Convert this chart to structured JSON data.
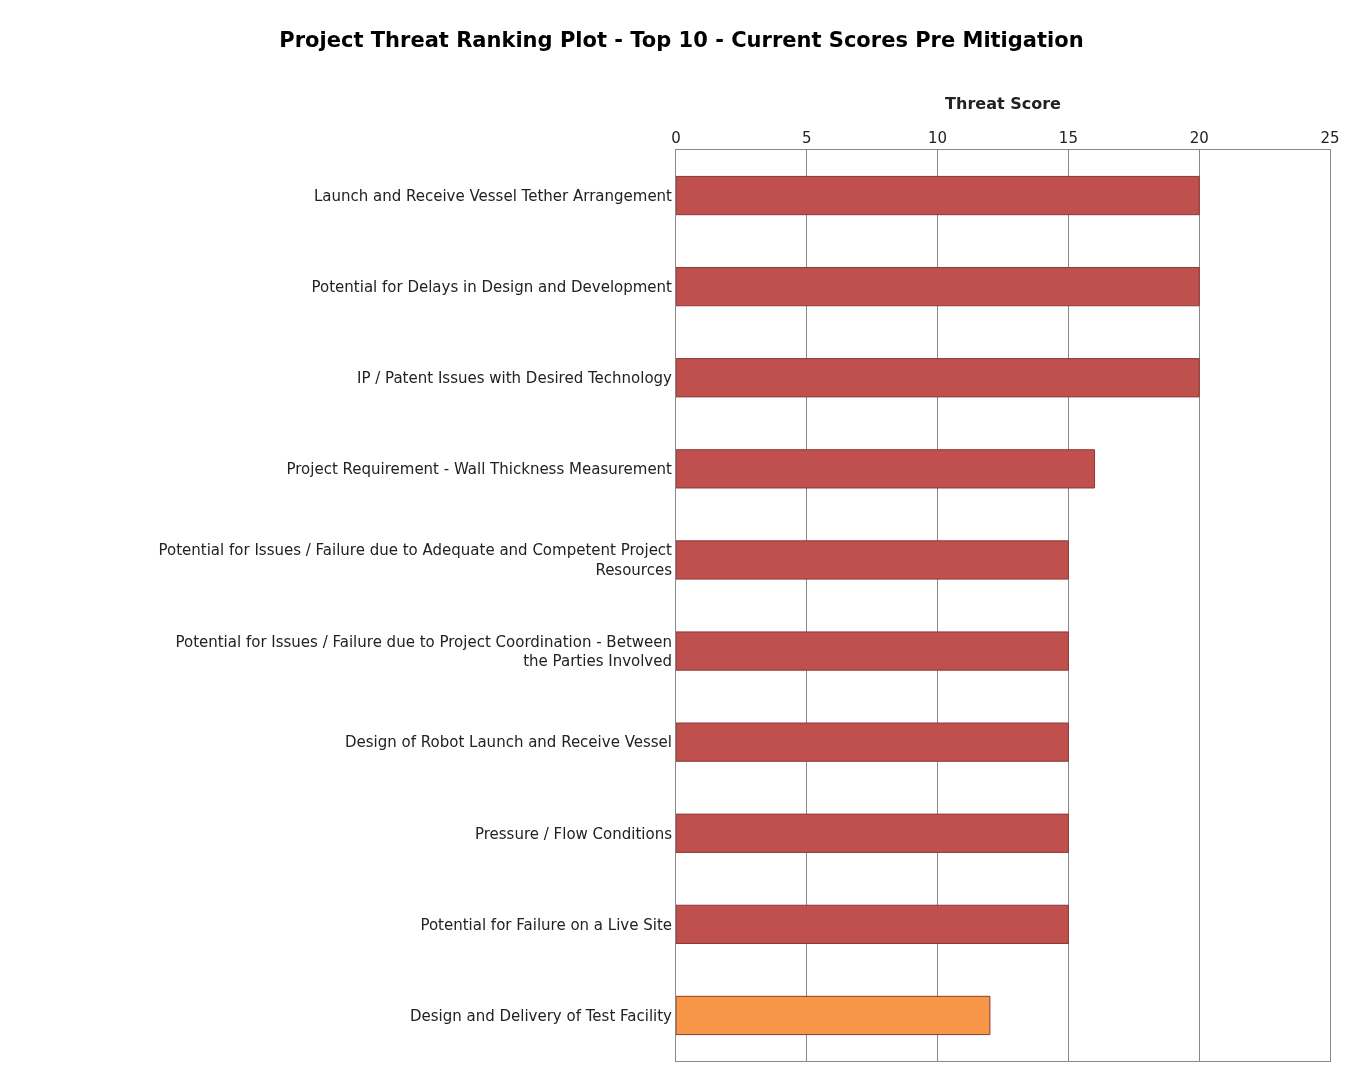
{
  "chart_data": {
    "type": "bar",
    "orientation": "horizontal",
    "title": "Project Threat Ranking Plot - Top 10 - Current Scores Pre Mitigation",
    "xlabel": "Threat Score",
    "categories": [
      "Launch and Receive Vessel Tether Arrangement",
      "Potential for Delays in Design and Development",
      "IP / Patent Issues with Desired Technology",
      "Project Requirement - Wall Thickness Measurement",
      "Potential for Issues / Failure due to Adequate and Competent Project Resources",
      "Potential for Issues / Failure due to Project Coordination - Between the Parties Involved",
      "Design of Robot Launch and Receive Vessel",
      "Pressure / Flow Conditions",
      "Potential for Failure on a Live Site",
      "Design and Delivery of Test Facility"
    ],
    "values": [
      20,
      20,
      20,
      16,
      15,
      15,
      15,
      15,
      15,
      12
    ],
    "colors": [
      "#c0504d",
      "#c0504d",
      "#c0504d",
      "#c0504d",
      "#c0504d",
      "#c0504d",
      "#c0504d",
      "#c0504d",
      "#c0504d",
      "#f79646"
    ],
    "xlim": [
      0,
      25
    ],
    "xticks": [
      0,
      5,
      10,
      15,
      20,
      25
    ],
    "grid": "x"
  }
}
